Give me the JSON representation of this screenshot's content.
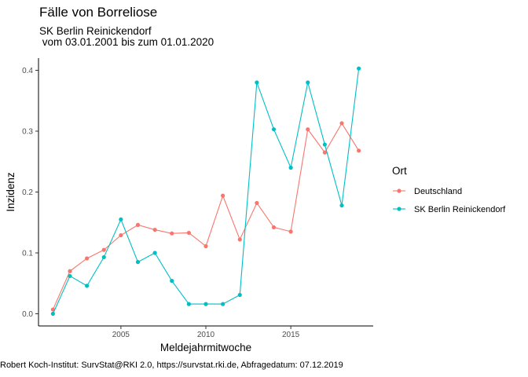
{
  "chart_data": {
    "type": "line",
    "title": "Fälle von Borreliose",
    "subtitle_line1": "SK Berlin Reinickendorf",
    "subtitle_line2": " vom 03.01.2001 bis zum 01.01.2020",
    "xlabel": "Meldejahrmitwoche",
    "ylabel": "Inzidenz",
    "caption": "Robert Koch-Institut: SurvStat@RKI 2.0, https://survstat.rki.de, Abfragedatum: 07.12.2019",
    "xlim": [
      2000.15,
      2019.85
    ],
    "ylim": [
      -0.02,
      0.42
    ],
    "x_ticks": [
      2005,
      2010,
      2015
    ],
    "y_ticks": [
      0.0,
      0.1,
      0.2,
      0.3,
      0.4
    ],
    "y_tick_labels": [
      "0.0",
      "0.1",
      "0.2",
      "0.3",
      "0.4"
    ],
    "grid": false,
    "legend": {
      "title": "Ort",
      "placement": "right"
    },
    "x": [
      2001,
      2002,
      2003,
      2004,
      2005,
      2006,
      2007,
      2008,
      2009,
      2010,
      2011,
      2012,
      2013,
      2014,
      2015,
      2016,
      2017,
      2018,
      2019
    ],
    "series": [
      {
        "name": "Deutschland",
        "color": "#F8766D",
        "values": [
          0.007,
          0.07,
          0.091,
          0.105,
          0.129,
          0.146,
          0.138,
          0.132,
          0.133,
          0.111,
          0.194,
          0.122,
          0.182,
          0.142,
          0.135,
          0.303,
          0.265,
          0.313,
          0.268
        ]
      },
      {
        "name": "SK Berlin Reinickendorf",
        "color": "#00BFC4",
        "values": [
          0.0,
          0.062,
          0.046,
          0.093,
          0.155,
          0.085,
          0.1,
          0.054,
          0.016,
          0.016,
          0.016,
          0.031,
          0.38,
          0.303,
          0.24,
          0.38,
          0.278,
          0.178,
          0.403
        ]
      }
    ]
  }
}
